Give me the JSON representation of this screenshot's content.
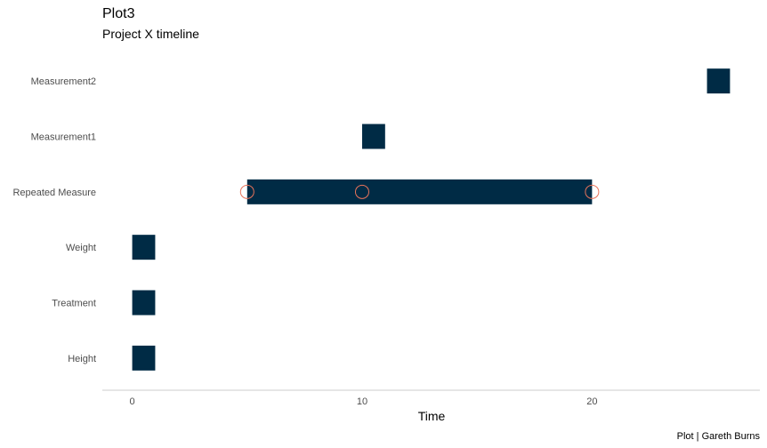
{
  "chart_data": {
    "type": "gantt",
    "title": "Plot3",
    "subtitle": "Project X timeline",
    "xlabel": "Time",
    "ylabel": "",
    "caption": "Plot | Gareth Burns",
    "xlim": [
      -1.3,
      27.3
    ],
    "xticks": [
      0,
      10,
      20
    ],
    "categories": [
      "Height",
      "Treatment",
      "Weight",
      "Repeated Measure",
      "Measurement1",
      "Measurement2"
    ],
    "tasks": [
      {
        "category": "Height",
        "start": 0,
        "end": 1
      },
      {
        "category": "Treatment",
        "start": 0,
        "end": 1
      },
      {
        "category": "Weight",
        "start": 0,
        "end": 1
      },
      {
        "category": "Repeated Measure",
        "start": 5,
        "end": 20
      },
      {
        "category": "Measurement1",
        "start": 10,
        "end": 11
      },
      {
        "category": "Measurement2",
        "start": 25,
        "end": 26
      }
    ],
    "markers": [
      {
        "category": "Repeated Measure",
        "x": 5
      },
      {
        "category": "Repeated Measure",
        "x": 10
      },
      {
        "category": "Repeated Measure",
        "x": 20
      }
    ],
    "grid": false,
    "colors": {
      "bar": "#002b45",
      "marker": "#e8735a",
      "axis": "#cccccc"
    }
  }
}
